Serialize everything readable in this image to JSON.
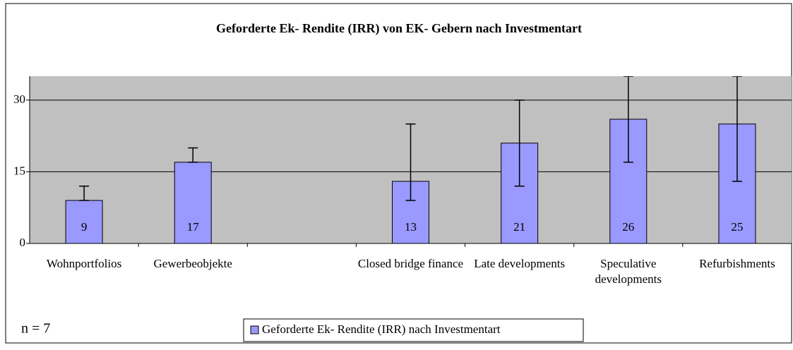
{
  "chart_data": {
    "type": "bar",
    "title": "Geforderte Ek- Rendite (IRR) von EK- Gebern nach Investmentart",
    "categories": [
      "Wohnportfolios",
      "Gewerbeobjekte",
      null,
      "Closed bridge finance",
      "Late developments",
      "Speculative developments",
      "Refurbishments"
    ],
    "series": [
      {
        "name": "Geforderte Ek- Rendite (IRR) nach Investmentart",
        "color": "#9999ff",
        "values": [
          9,
          17,
          null,
          13,
          21,
          26,
          25
        ],
        "errors_plus": [
          3,
          3,
          null,
          12,
          9,
          9,
          10
        ],
        "errors_minus": [
          0,
          0,
          null,
          4,
          9,
          9,
          12
        ]
      }
    ],
    "ylim": [
      0,
      35
    ],
    "yticks": [
      0,
      15,
      30
    ],
    "grid": true,
    "annotation": "n = 7",
    "legend": "bottom"
  }
}
